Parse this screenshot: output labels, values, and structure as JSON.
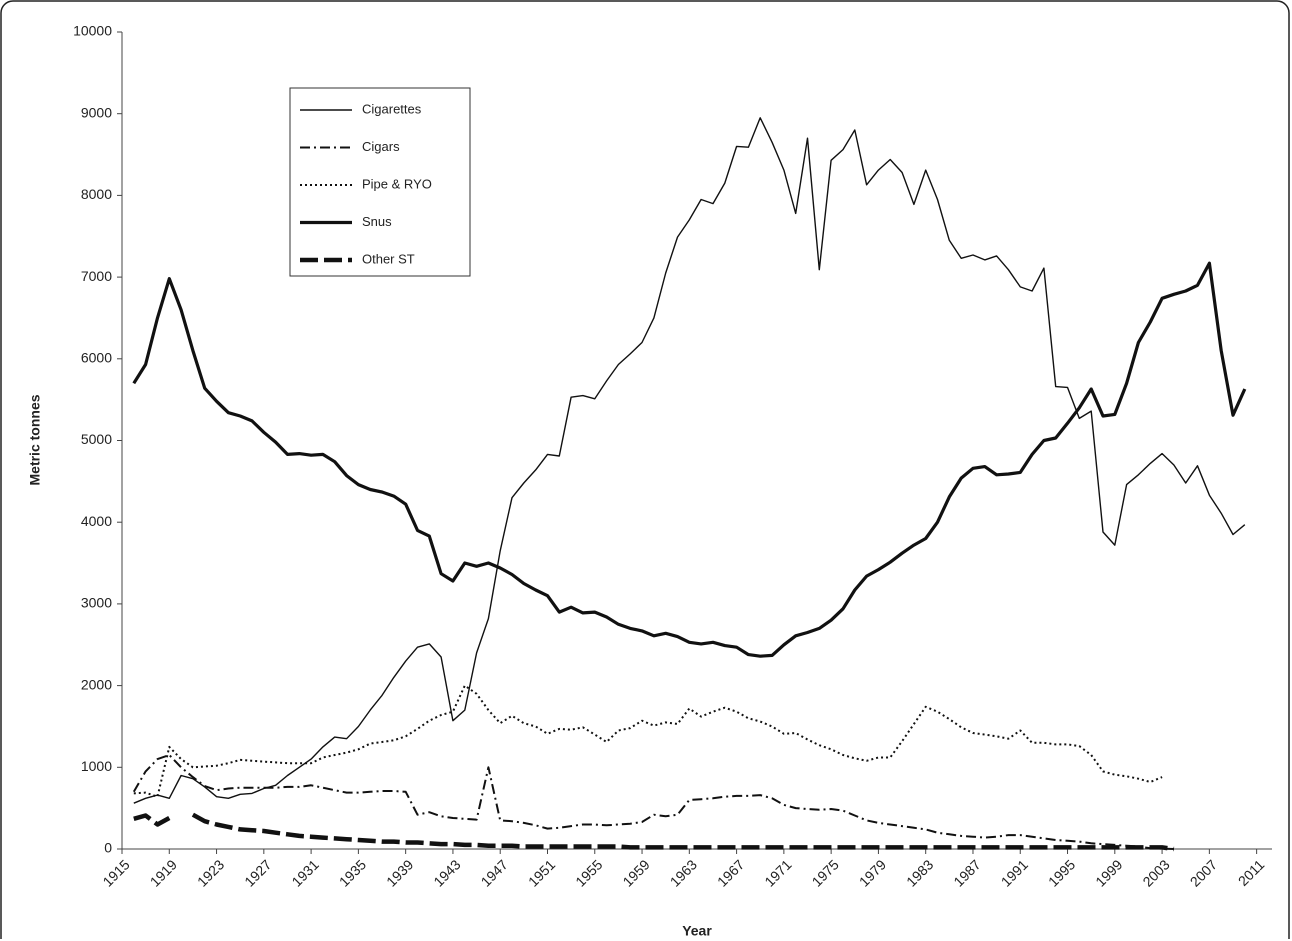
{
  "chart_data": {
    "type": "line",
    "x_label": "Year",
    "y_label": "Metric tonnes",
    "x": [
      1916,
      1917,
      1918,
      1919,
      1920,
      1921,
      1922,
      1923,
      1924,
      1925,
      1926,
      1927,
      1928,
      1929,
      1930,
      1931,
      1932,
      1933,
      1934,
      1935,
      1936,
      1937,
      1938,
      1939,
      1940,
      1941,
      1942,
      1943,
      1944,
      1945,
      1946,
      1947,
      1948,
      1949,
      1950,
      1951,
      1952,
      1953,
      1954,
      1955,
      1956,
      1957,
      1958,
      1959,
      1960,
      1961,
      1962,
      1963,
      1964,
      1965,
      1966,
      1967,
      1968,
      1969,
      1970,
      1971,
      1972,
      1973,
      1974,
      1975,
      1976,
      1977,
      1978,
      1979,
      1980,
      1981,
      1982,
      1983,
      1984,
      1985,
      1986,
      1987,
      1988,
      1989,
      1990,
      1991,
      1992,
      1993,
      1994,
      1995,
      1996,
      1997,
      1998,
      1999,
      2000,
      2001,
      2002,
      2003,
      2004,
      2005,
      2006,
      2007,
      2008,
      2009,
      2010
    ],
    "series": [
      {
        "name": "Cigarettes",
        "color": "#111",
        "width": 1.4,
        "dash": "none",
        "values": [
          560,
          620,
          660,
          620,
          900,
          860,
          760,
          640,
          620,
          670,
          680,
          740,
          780,
          900,
          1000,
          1100,
          1250,
          1370,
          1350,
          1500,
          1700,
          1880,
          2100,
          2300,
          2470,
          2510,
          2350,
          1570,
          1700,
          2400,
          2820,
          3650,
          4300,
          4480,
          4640,
          4830,
          4810,
          5530,
          5550,
          5510,
          5730,
          5930,
          6060,
          6200,
          6500,
          7050,
          7490,
          7700,
          7950,
          7900,
          8150,
          8600,
          8590,
          8950,
          8650,
          8310,
          7780,
          8700,
          7090,
          8430,
          8560,
          8800,
          8130,
          8310,
          8440,
          8280,
          7890,
          8310,
          7950,
          7450,
          7230,
          7270,
          7210,
          7260,
          7090,
          6880,
          6830,
          7110,
          5660,
          5650,
          5270,
          5360,
          3880,
          3720,
          4460,
          4580,
          4720,
          4840,
          4700,
          4480,
          4690,
          4330,
          4110,
          3850,
          3970
        ]
      },
      {
        "name": "Cigars",
        "color": "#111",
        "width": 2,
        "dash": "10 4 2 4",
        "values": [
          700,
          950,
          1100,
          1150,
          1000,
          880,
          770,
          720,
          740,
          750,
          750,
          750,
          750,
          760,
          760,
          780,
          750,
          720,
          690,
          690,
          700,
          710,
          710,
          700,
          420,
          450,
          400,
          380,
          370,
          360,
          1000,
          350,
          340,
          320,
          290,
          250,
          260,
          280,
          300,
          300,
          290,
          300,
          310,
          330,
          420,
          400,
          420,
          600,
          610,
          620,
          640,
          650,
          650,
          660,
          620,
          540,
          500,
          490,
          480,
          490,
          470,
          410,
          350,
          320,
          300,
          280,
          260,
          240,
          200,
          180,
          160,
          150,
          140,
          150,
          170,
          170,
          150,
          130,
          110,
          100,
          90,
          70,
          60,
          50,
          40,
          30,
          10,
          5,
          0,
          null,
          null,
          null,
          null,
          null,
          null
        ]
      },
      {
        "name": "Pipe & RYO",
        "color": "#111",
        "width": 2,
        "dash": "2 3",
        "values": [
          680,
          690,
          640,
          1250,
          1100,
          1000,
          1010,
          1020,
          1050,
          1090,
          1080,
          1070,
          1060,
          1050,
          1050,
          1050,
          1120,
          1150,
          1180,
          1220,
          1290,
          1310,
          1330,
          1380,
          1470,
          1570,
          1640,
          1680,
          2000,
          1900,
          1700,
          1540,
          1630,
          1540,
          1500,
          1410,
          1470,
          1460,
          1490,
          1400,
          1310,
          1450,
          1480,
          1570,
          1510,
          1550,
          1530,
          1720,
          1620,
          1680,
          1730,
          1680,
          1600,
          1560,
          1500,
          1410,
          1420,
          1340,
          1270,
          1220,
          1150,
          1110,
          1080,
          1120,
          1120,
          1320,
          1530,
          1740,
          1680,
          1590,
          1490,
          1420,
          1400,
          1380,
          1350,
          1450,
          1300,
          1300,
          1280,
          1280,
          1260,
          1150,
          950,
          910,
          890,
          860,
          820,
          880,
          null,
          null,
          null,
          null,
          null,
          null,
          null
        ]
      },
      {
        "name": "Snus",
        "color": "#111",
        "width": 3.2,
        "dash": "none",
        "values": [
          5700,
          5930,
          6500,
          6980,
          6600,
          6100,
          5640,
          5480,
          5340,
          5300,
          5240,
          5100,
          4980,
          4830,
          4840,
          4820,
          4830,
          4740,
          4570,
          4460,
          4400,
          4370,
          4320,
          4220,
          3900,
          3830,
          3370,
          3280,
          3500,
          3460,
          3500,
          3440,
          3360,
          3250,
          3170,
          3100,
          2900,
          2960,
          2890,
          2900,
          2840,
          2750,
          2700,
          2670,
          2610,
          2640,
          2600,
          2530,
          2510,
          2530,
          2490,
          2470,
          2380,
          2360,
          2370,
          2500,
          2610,
          2650,
          2700,
          2800,
          2940,
          3170,
          3340,
          3420,
          3510,
          3620,
          3720,
          3800,
          4000,
          4310,
          4540,
          4660,
          4680,
          4580,
          4590,
          4610,
          4830,
          5000,
          5030,
          5210,
          5400,
          5630,
          5300,
          5320,
          5700,
          6200,
          6450,
          6740,
          6790,
          6830,
          6900,
          7170,
          6100,
          5310,
          5630
        ]
      },
      {
        "name": "Other ST",
        "color": "#111",
        "width": 4.5,
        "dash": "18 6",
        "values": [
          370,
          410,
          300,
          380,
          null,
          420,
          340,
          300,
          270,
          240,
          230,
          220,
          200,
          180,
          160,
          150,
          140,
          130,
          120,
          110,
          100,
          90,
          90,
          80,
          80,
          70,
          60,
          60,
          50,
          50,
          40,
          40,
          40,
          30,
          30,
          30,
          30,
          30,
          30,
          30,
          30,
          30,
          20,
          20,
          20,
          20,
          20,
          20,
          20,
          20,
          20,
          20,
          20,
          20,
          20,
          20,
          20,
          20,
          20,
          20,
          20,
          20,
          20,
          20,
          20,
          20,
          20,
          20,
          20,
          20,
          20,
          20,
          20,
          20,
          20,
          20,
          20,
          20,
          20,
          20,
          20,
          20,
          20,
          20,
          20,
          20,
          20,
          20,
          0,
          null,
          null,
          null,
          null,
          null,
          null
        ]
      }
    ],
    "xlim": [
      1915,
      2012.3
    ],
    "xticks": [
      1915,
      1919,
      1923,
      1927,
      1931,
      1935,
      1939,
      1943,
      1947,
      1951,
      1955,
      1959,
      1963,
      1967,
      1971,
      1975,
      1979,
      1983,
      1987,
      1991,
      1995,
      1999,
      2003,
      2007,
      2011
    ],
    "ylim": [
      0,
      10000
    ],
    "yticks": [
      0,
      1000,
      2000,
      3000,
      4000,
      5000,
      6000,
      7000,
      8000,
      9000,
      10000
    ],
    "grid": false,
    "legend": "upper-left"
  }
}
